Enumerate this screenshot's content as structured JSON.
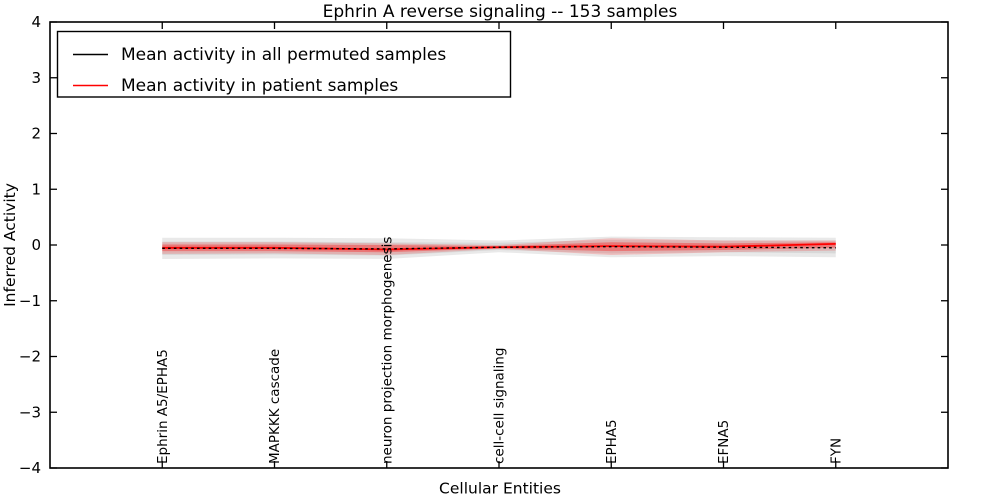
{
  "figure": {
    "title": "Ephrin A  reverse signaling -- 153 samples",
    "xlabel": "Cellular Entities",
    "ylabel": "Inferred Activity"
  },
  "chart_data": {
    "type": "line",
    "title": "Ephrin A  reverse signaling -- 153 samples",
    "xlabel": "Cellular Entities",
    "ylabel": "Inferred Activity",
    "categories": [
      "Ephrin A5/EPHA5",
      "MAPKKK cascade",
      "neuron projection morphogenesis",
      "cell-cell signaling",
      "EPHA5",
      "EFNA5",
      "FYN"
    ],
    "ylim": [
      -4,
      4
    ],
    "yticks": [
      -4,
      -3,
      -2,
      -1,
      0,
      1,
      2,
      3,
      4
    ],
    "grid": false,
    "legend_position": "upper left",
    "frame_color": "#000000",
    "series": [
      {
        "name": "Mean activity in all permuted samples",
        "color": "#000000",
        "style": "dashed",
        "values": [
          -0.06,
          -0.06,
          -0.07,
          -0.04,
          -0.03,
          -0.04,
          -0.05
        ]
      },
      {
        "name": "Mean activity in patient samples",
        "color": "#ff0000",
        "style": "solid",
        "values": [
          -0.05,
          -0.05,
          -0.08,
          -0.04,
          -0.02,
          -0.03,
          0.02
        ]
      }
    ],
    "bands": [
      {
        "name": "permuted-samples-outer-range",
        "color": "#999999",
        "opacity": 0.22,
        "upper": [
          0.13,
          0.13,
          0.12,
          0.08,
          0.15,
          0.14,
          0.13
        ],
        "lower": [
          -0.25,
          -0.24,
          -0.25,
          -0.13,
          -0.22,
          -0.2,
          -0.22
        ]
      },
      {
        "name": "permuted-samples-inner-range",
        "color": "#999999",
        "opacity": 0.22,
        "upper": [
          0.06,
          0.06,
          0.05,
          0.04,
          0.09,
          0.08,
          0.08
        ],
        "lower": [
          -0.18,
          -0.17,
          -0.19,
          -0.09,
          -0.15,
          -0.13,
          -0.15
        ]
      },
      {
        "name": "patient-samples-outer-range",
        "color": "#ff0000",
        "opacity": 0.18,
        "upper": [
          0.05,
          0.05,
          0.03,
          0.0,
          0.12,
          0.08,
          0.08
        ],
        "lower": [
          -0.16,
          -0.15,
          -0.18,
          -0.07,
          -0.18,
          -0.13,
          -0.1
        ]
      },
      {
        "name": "patient-samples-inner-range",
        "color": "#ff0000",
        "opacity": 0.32,
        "upper": [
          0.01,
          0.01,
          0.0,
          -0.02,
          0.05,
          0.03,
          0.05
        ],
        "lower": [
          -0.11,
          -0.11,
          -0.13,
          -0.06,
          -0.11,
          -0.09,
          -0.05
        ]
      }
    ]
  }
}
